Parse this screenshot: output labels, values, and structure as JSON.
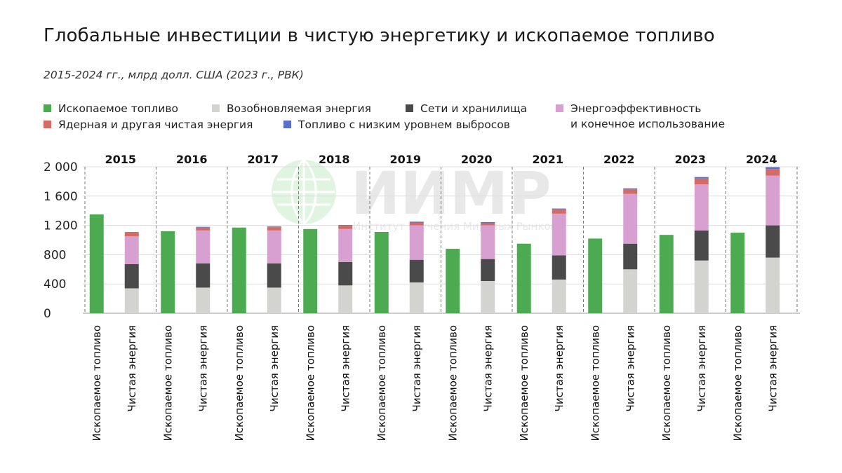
{
  "title": "Глобальные инвестиции в чистую энергетику и ископаемое топливо",
  "subtitle": "2015-2024 гг., млрд долл. США (2023 г., РВК)",
  "watermark": {
    "logo_text": "ИИМР",
    "tagline": "Институт изучения Мировых Рынков"
  },
  "legend": [
    {
      "label": "Ископаемое топливо",
      "color": "#4caa50"
    },
    {
      "label": "Возобновляемая энергия",
      "color": "#d3d3cf"
    },
    {
      "label": "Сети и хранилища",
      "color": "#4a4a4a"
    },
    {
      "label": "Энергоэффективность\nи конечное использование",
      "color": "#d8a0d0"
    },
    {
      "label": "Ядерная и другая чистая энергия",
      "color": "#d46a64"
    },
    {
      "label": "Топливо с низким уровнем выбросов",
      "color": "#5b6fc9"
    }
  ],
  "chart_data": {
    "type": "bar",
    "stacked": true,
    "years": [
      "2015",
      "2016",
      "2017",
      "2018",
      "2019",
      "2020",
      "2021",
      "2022",
      "2023",
      "2024"
    ],
    "bar_labels": [
      "Ископаемое топливо",
      "Чистая энергия"
    ],
    "y_ticks": [
      "2 000",
      "1 600",
      "1 200",
      "800",
      "400",
      "0"
    ],
    "ylim": [
      0,
      2000
    ],
    "fossil_fuels": [
      1350,
      1120,
      1170,
      1150,
      1110,
      880,
      950,
      1020,
      1070,
      1100
    ],
    "clean_energy_series": [
      {
        "name": "Возобновляемая энергия",
        "color": "#d3d3cf",
        "values": [
          340,
          350,
          350,
          380,
          420,
          440,
          460,
          600,
          720,
          760
        ]
      },
      {
        "name": "Сети и хранилища",
        "color": "#4a4a4a",
        "values": [
          330,
          330,
          330,
          320,
          310,
          300,
          330,
          350,
          410,
          440
        ]
      },
      {
        "name": "Энергоэффективность и конечное использование",
        "color": "#d8a0d0",
        "values": [
          380,
          450,
          450,
          450,
          470,
          460,
          570,
          680,
          630,
          680
        ]
      },
      {
        "name": "Ядерная и другая чистая энергия",
        "color": "#d46a64",
        "values": [
          60,
          40,
          45,
          45,
          35,
          30,
          60,
          60,
          80,
          90
        ]
      },
      {
        "name": "Топливо с низким уровнем выбросов",
        "color": "#5b6fc9",
        "values": [
          0,
          10,
          10,
          10,
          15,
          15,
          10,
          15,
          20,
          25
        ]
      }
    ],
    "fossil_color": "#4caa50",
    "grid": true
  }
}
